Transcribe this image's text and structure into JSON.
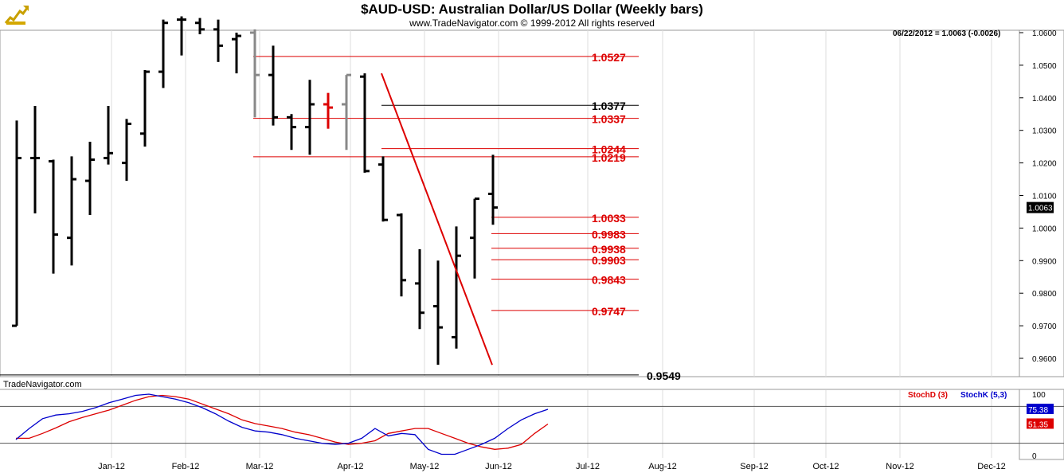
{
  "header": {
    "title": "$AUD-USD:  Australian Dollar/US Dollar  (Weekly bars)",
    "subtitle": "www.TradeNavigator.com © 1999-2012 All rights reserved",
    "logo_icon": "trade-navigator-logo-icon"
  },
  "last_readout": "06/22/2012 = 1.0063 (-0.0026)",
  "brand": "TradeNavigator.com",
  "stoch_legend": {
    "d_label": "StochD (3)",
    "k_label": "StochK (5,3)"
  },
  "colors": {
    "red": "#dd0000",
    "blue": "#0000cc",
    "black": "#000000",
    "gray": "#888888"
  },
  "chart_data": [
    {
      "type": "ohlc",
      "title": "$AUD-USD:  Australian Dollar/US Dollar  (Weekly bars)",
      "ylim": [
        0.955,
        1.063
      ],
      "y_ticks": [
        "1.0600",
        "1.0500",
        "1.0400",
        "1.0300",
        "1.0200",
        "1.0100",
        "1.0000",
        "0.9900",
        "0.9800",
        "0.9700",
        "0.9600"
      ],
      "x_tick_labels": [
        "Jan-12",
        "Feb-12",
        "Mar-12",
        "Apr-12",
        "May-12",
        "Jun-12",
        "Jul-12",
        "Aug-12",
        "Sep-12",
        "Oct-12",
        "Nov-12",
        "Dec-12"
      ],
      "last_value_label": "1.0063",
      "bars": [
        {
          "o": 0.97,
          "h": 1.033,
          "l": 0.97,
          "c": 1.0215
        },
        {
          "o": 1.0215,
          "h": 1.0375,
          "l": 1.0045,
          "c": 1.0215
        },
        {
          "o": 1.0205,
          "h": 1.021,
          "l": 0.986,
          "c": 0.998
        },
        {
          "o": 0.997,
          "h": 1.022,
          "l": 0.9885,
          "c": 1.015
        },
        {
          "o": 1.0145,
          "h": 1.0265,
          "l": 1.004,
          "c": 1.021
        },
        {
          "o": 1.0215,
          "h": 1.0375,
          "l": 1.0195,
          "c": 1.023
        },
        {
          "o": 1.02,
          "h": 1.0335,
          "l": 1.0145,
          "c": 1.032
        },
        {
          "o": 1.029,
          "h": 1.0485,
          "l": 1.025,
          "c": 1.048
        },
        {
          "o": 1.048,
          "h": 1.064,
          "l": 1.043,
          "c": 1.063
        },
        {
          "o": 1.064,
          "h": 1.065,
          "l": 1.053,
          "c": 1.064
        },
        {
          "o": 1.063,
          "h": 1.0645,
          "l": 1.0595,
          "c": 1.061
        },
        {
          "o": 1.061,
          "h": 1.064,
          "l": 1.051,
          "c": 1.056
        },
        {
          "o": 1.058,
          "h": 1.06,
          "l": 1.0475,
          "c": 1.059
        },
        {
          "o": 1.06,
          "h": 1.061,
          "l": 1.034,
          "c": 1.047,
          "gray": true
        },
        {
          "o": 1.047,
          "h": 1.056,
          "l": 1.0315,
          "c": 1.034
        },
        {
          "o": 1.034,
          "h": 1.035,
          "l": 1.024,
          "c": 1.031
        },
        {
          "o": 1.031,
          "h": 1.0455,
          "l": 1.0225,
          "c": 1.038
        },
        {
          "o": 1.038,
          "h": 1.0415,
          "l": 1.0305,
          "c": 1.037,
          "red": true
        },
        {
          "o": 1.038,
          "h": 1.047,
          "l": 1.024,
          "c": 1.047,
          "gray": true
        },
        {
          "o": 1.0465,
          "h": 1.0475,
          "l": 1.017,
          "c": 1.0175
        },
        {
          "o": 1.0195,
          "h": 1.022,
          "l": 1.002,
          "c": 1.0025
        },
        {
          "o": 1.004,
          "h": 1.0045,
          "l": 0.979,
          "c": 0.984
        },
        {
          "o": 0.983,
          "h": 0.9935,
          "l": 0.969,
          "c": 0.974
        },
        {
          "o": 0.976,
          "h": 0.99,
          "l": 0.958,
          "c": 0.9695
        },
        {
          "o": 0.9665,
          "h": 1.0005,
          "l": 0.963,
          "c": 0.9915
        },
        {
          "o": 0.997,
          "h": 1.009,
          "l": 0.9845,
          "c": 1.009
        },
        {
          "o": 1.0105,
          "h": 1.0225,
          "l": 1.001,
          "c": 1.0063
        }
      ],
      "levels": [
        {
          "value": 1.0527,
          "label": "1.0527",
          "color": "red",
          "from_bar": 13
        },
        {
          "value": 1.0377,
          "label": "1.0377",
          "color": "black",
          "from_bar": 20
        },
        {
          "value": 1.0337,
          "label": "1.0337",
          "color": "red",
          "from_bar": 13
        },
        {
          "value": 1.0244,
          "label": "1.0244",
          "color": "red",
          "from_bar": 20
        },
        {
          "value": 1.0219,
          "label": "1.0219",
          "color": "red",
          "from_bar": 13
        },
        {
          "value": 1.0033,
          "label": "1.0033",
          "color": "red",
          "from_bar": 26
        },
        {
          "value": 0.9983,
          "label": "0.9983",
          "color": "red",
          "from_bar": 26
        },
        {
          "value": 0.9938,
          "label": "0.9938",
          "color": "red",
          "from_bar": 26
        },
        {
          "value": 0.9903,
          "label": "0.9903",
          "color": "red",
          "from_bar": 26
        },
        {
          "value": 0.9843,
          "label": "0.9843",
          "color": "red",
          "from_bar": 26
        },
        {
          "value": 0.9747,
          "label": "0.9747",
          "color": "red",
          "from_bar": 26
        },
        {
          "value": 0.9549,
          "label": "0.9549",
          "color": "black",
          "from_bar": 0
        }
      ],
      "trendline": {
        "from": {
          "bar": 20,
          "value": 1.0475
        },
        "to": {
          "bar": 26,
          "value": 0.958
        },
        "color": "red"
      }
    },
    {
      "type": "line",
      "ylim": [
        0,
        100
      ],
      "y_ticks": [
        "100",
        "0"
      ],
      "reference_lines": [
        80,
        20
      ],
      "last_value_labels": {
        "k": "75.38",
        "d": "51.35"
      },
      "series": [
        {
          "name": "StochD (3)",
          "color": "red",
          "values": [
            28,
            28,
            36,
            45,
            55,
            62,
            68,
            74,
            82,
            90,
            96,
            98,
            96,
            92,
            84,
            76,
            68,
            58,
            52,
            48,
            44,
            38,
            34,
            28,
            22,
            18,
            20,
            24,
            36,
            40,
            44,
            44,
            36,
            28,
            20,
            14,
            10,
            12,
            18,
            36,
            51.35
          ]
        },
        {
          "name": "StochK (5,3)",
          "color": "blue",
          "values": [
            26,
            44,
            60,
            66,
            68,
            72,
            78,
            86,
            92,
            98,
            100,
            96,
            92,
            86,
            78,
            68,
            56,
            46,
            40,
            38,
            34,
            28,
            24,
            20,
            18,
            20,
            28,
            44,
            32,
            36,
            34,
            10,
            2,
            2,
            10,
            18,
            28,
            44,
            58,
            68,
            75.38
          ]
        }
      ]
    }
  ]
}
